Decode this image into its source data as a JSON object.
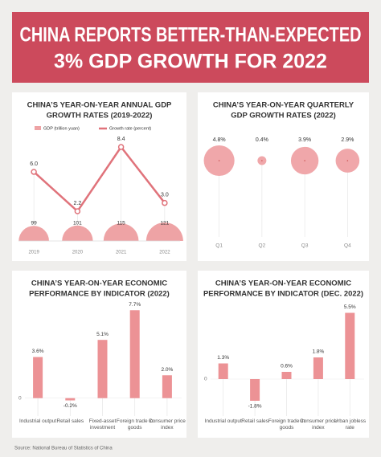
{
  "title": [
    "CHINA REPORTS BETTER-THAN-EXPECTED",
    "3% GDP GROWTH FOR 2022"
  ],
  "chart_data": [
    {
      "type": "bubble_line",
      "title": [
        "CHINA’S YEAR-ON-YEAR ANNUAL GDP",
        "GROWTH RATES (2019-2022)"
      ],
      "categories": [
        "2019",
        "2020",
        "2021",
        "2022"
      ],
      "series": [
        {
          "name": "GDP (trillion yuan)",
          "color": "#eea3a5",
          "values": [
            99,
            101,
            115,
            121
          ]
        },
        {
          "name": "Growth rate (percent)",
          "color": "#e0737b",
          "values": [
            6.0,
            2.2,
            8.4,
            3.0
          ],
          "value_labels": [
            "6.0",
            "2.2",
            "8.4",
            "3.0"
          ]
        }
      ]
    },
    {
      "type": "bubble",
      "title": [
        "CHINA’S YEAR-ON-YEAR QUARTERLY",
        "GDP GROWTH RATES (2022)"
      ],
      "categories": [
        "Q1",
        "Q2",
        "Q3",
        "Q4"
      ],
      "values": [
        4.8,
        0.4,
        3.9,
        2.9
      ],
      "value_labels": [
        "4.8%",
        "0.4%",
        "3.9%",
        "2.9%"
      ],
      "color": "#f0a7aa"
    },
    {
      "type": "bar",
      "title": [
        "CHINA’S YEAR-ON-YEAR ECONOMIC",
        "PERFORMANCE BY INDICATOR (2022)"
      ],
      "categories": [
        "Industrial output",
        "Retail sales",
        "Fixed-asset investment",
        "Foreign trade in goods",
        "Consumer price index"
      ],
      "values": [
        3.6,
        -0.2,
        5.1,
        7.7,
        2.0
      ],
      "value_labels": [
        "3.6%",
        "-0.2%",
        "5.1%",
        "7.7%",
        "2.0%"
      ],
      "color": "#ec9295",
      "ylim": [
        -1.5,
        8
      ],
      "yticks": [
        0
      ]
    },
    {
      "type": "bar",
      "title": [
        "CHINA’S YEAR-ON-YEAR ECONOMIC",
        "PERFORMANCE BY INDICATOR (DEC. 2022)"
      ],
      "categories": [
        "Industrial output",
        "Retail sales",
        "Foreign trade in goods",
        "Consumer price index",
        "Urban jobless rate"
      ],
      "values": [
        1.3,
        -1.8,
        0.6,
        1.8,
        5.5
      ],
      "value_labels": [
        "1.3%",
        "-1.8%",
        "0.6%",
        "1.8%",
        "5.5%"
      ],
      "color": "#ec9295",
      "ylim": [
        -3,
        6
      ],
      "yticks": [
        0
      ]
    }
  ],
  "source": "Source: National Bureau of Statistics of China"
}
